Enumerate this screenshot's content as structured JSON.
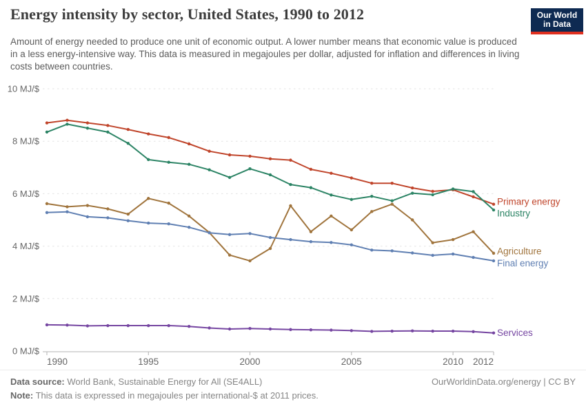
{
  "header": {
    "title": "Energy intensity by sector, United States, 1990 to 2012",
    "subtitle": "Amount of energy needed to produce one unit of economic output. A lower number means that economic value is produced in a less energy-intensive way. This data is measured in megajoules per dollar, adjusted for inflation and differences in living costs between countries.",
    "logo": {
      "line1": "Our World",
      "line2": "in Data",
      "bg_color": "#0e2a52",
      "stripe_color": "#e0301f"
    }
  },
  "chart_data": {
    "type": "line",
    "title": "Energy intensity by sector, United States, 1990 to 2012",
    "xlabel": "",
    "ylabel": "MJ/$",
    "ylim": [
      0,
      10
    ],
    "grid": "horizontal-dashed",
    "legend_position": "right-of-line-ends",
    "x": [
      1990,
      1991,
      1992,
      1993,
      1994,
      1995,
      1996,
      1997,
      1998,
      1999,
      2000,
      2001,
      2002,
      2003,
      2004,
      2005,
      2006,
      2007,
      2008,
      2009,
      2010,
      2011,
      2012
    ],
    "xticks": [
      1990,
      1995,
      2000,
      2005,
      2010,
      2012
    ],
    "xtick_labels": [
      "1990",
      "1995",
      "2000",
      "2005",
      "2010",
      "2012"
    ],
    "yticks": [
      0,
      2,
      4,
      6,
      8,
      10
    ],
    "ytick_labels": [
      "0 MJ/$",
      "2 MJ/$",
      "4 MJ/$",
      "6 MJ/$",
      "8 MJ/$",
      "10 MJ/$"
    ],
    "axis_color": "#b3b3b3",
    "grid_color": "#e2e2e2",
    "tick_text_color": "#666666",
    "series": [
      {
        "name": "Primary energy",
        "color": "#c0452b",
        "values": [
          8.7,
          8.8,
          8.7,
          8.6,
          8.45,
          8.28,
          8.14,
          7.9,
          7.62,
          7.48,
          7.43,
          7.33,
          7.28,
          6.93,
          6.78,
          6.6,
          6.4,
          6.4,
          6.22,
          6.09,
          6.15,
          5.88,
          5.6
        ]
      },
      {
        "name": "Industry",
        "color": "#2c8465",
        "values": [
          8.35,
          8.65,
          8.5,
          8.35,
          7.92,
          7.3,
          7.2,
          7.12,
          6.91,
          6.62,
          6.95,
          6.72,
          6.35,
          6.23,
          5.95,
          5.78,
          5.9,
          5.73,
          6.02,
          5.96,
          6.18,
          6.08,
          5.38
        ]
      },
      {
        "name": "Agriculture",
        "color": "#a0743c",
        "values": [
          5.62,
          5.5,
          5.55,
          5.42,
          5.22,
          5.82,
          5.64,
          5.15,
          4.52,
          3.66,
          3.44,
          3.91,
          5.54,
          4.55,
          5.15,
          4.62,
          5.32,
          5.6,
          5.0,
          4.13,
          4.25,
          4.55,
          3.73
        ]
      },
      {
        "name": "Final energy",
        "color": "#5f7fb2",
        "values": [
          5.28,
          5.31,
          5.12,
          5.08,
          4.97,
          4.88,
          4.85,
          4.72,
          4.51,
          4.44,
          4.48,
          4.33,
          4.25,
          4.17,
          4.14,
          4.05,
          3.85,
          3.82,
          3.74,
          3.65,
          3.7,
          3.57,
          3.44
        ]
      },
      {
        "name": "Services",
        "color": "#7545a1",
        "values": [
          1.0,
          0.99,
          0.96,
          0.97,
          0.97,
          0.97,
          0.97,
          0.94,
          0.88,
          0.84,
          0.86,
          0.84,
          0.82,
          0.81,
          0.8,
          0.78,
          0.75,
          0.76,
          0.77,
          0.76,
          0.76,
          0.74,
          0.69
        ]
      }
    ]
  },
  "footer": {
    "source_label": "Data source:",
    "source_text": " World Bank, Sustainable Energy for All (SE4ALL)",
    "note_label": "Note:",
    "note_text": " This data is expressed in megajoules per international-$ at 2011 prices.",
    "credit": "OurWorldinData.org/energy | CC BY"
  }
}
